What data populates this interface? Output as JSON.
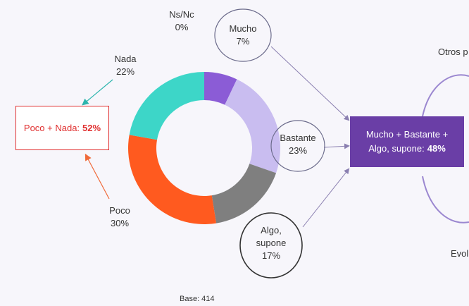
{
  "chart_data": {
    "type": "donut",
    "categories": [
      "Ns/Nc",
      "Mucho",
      "Bastante",
      "Algo, supone",
      "Poco",
      "Nada"
    ],
    "values": [
      0,
      7,
      23,
      17,
      30,
      22
    ],
    "value_labels": [
      "0%",
      "7%",
      "23%",
      "17%",
      "30%",
      "22%"
    ],
    "colors": [
      "#999999",
      "#8b5cd6",
      "#c9bdf0",
      "#7f7f7f",
      "#ff5a1f",
      "#3dd6c8"
    ],
    "annotations": [
      {
        "text": "Poco + Nada:",
        "highlight": "52%"
      },
      {
        "text": "Mucho + Bastante + Algo, supone:",
        "highlight": "48%"
      }
    ],
    "base": "Base: 414",
    "side_texts": [
      "Otros p",
      "Evol"
    ]
  }
}
